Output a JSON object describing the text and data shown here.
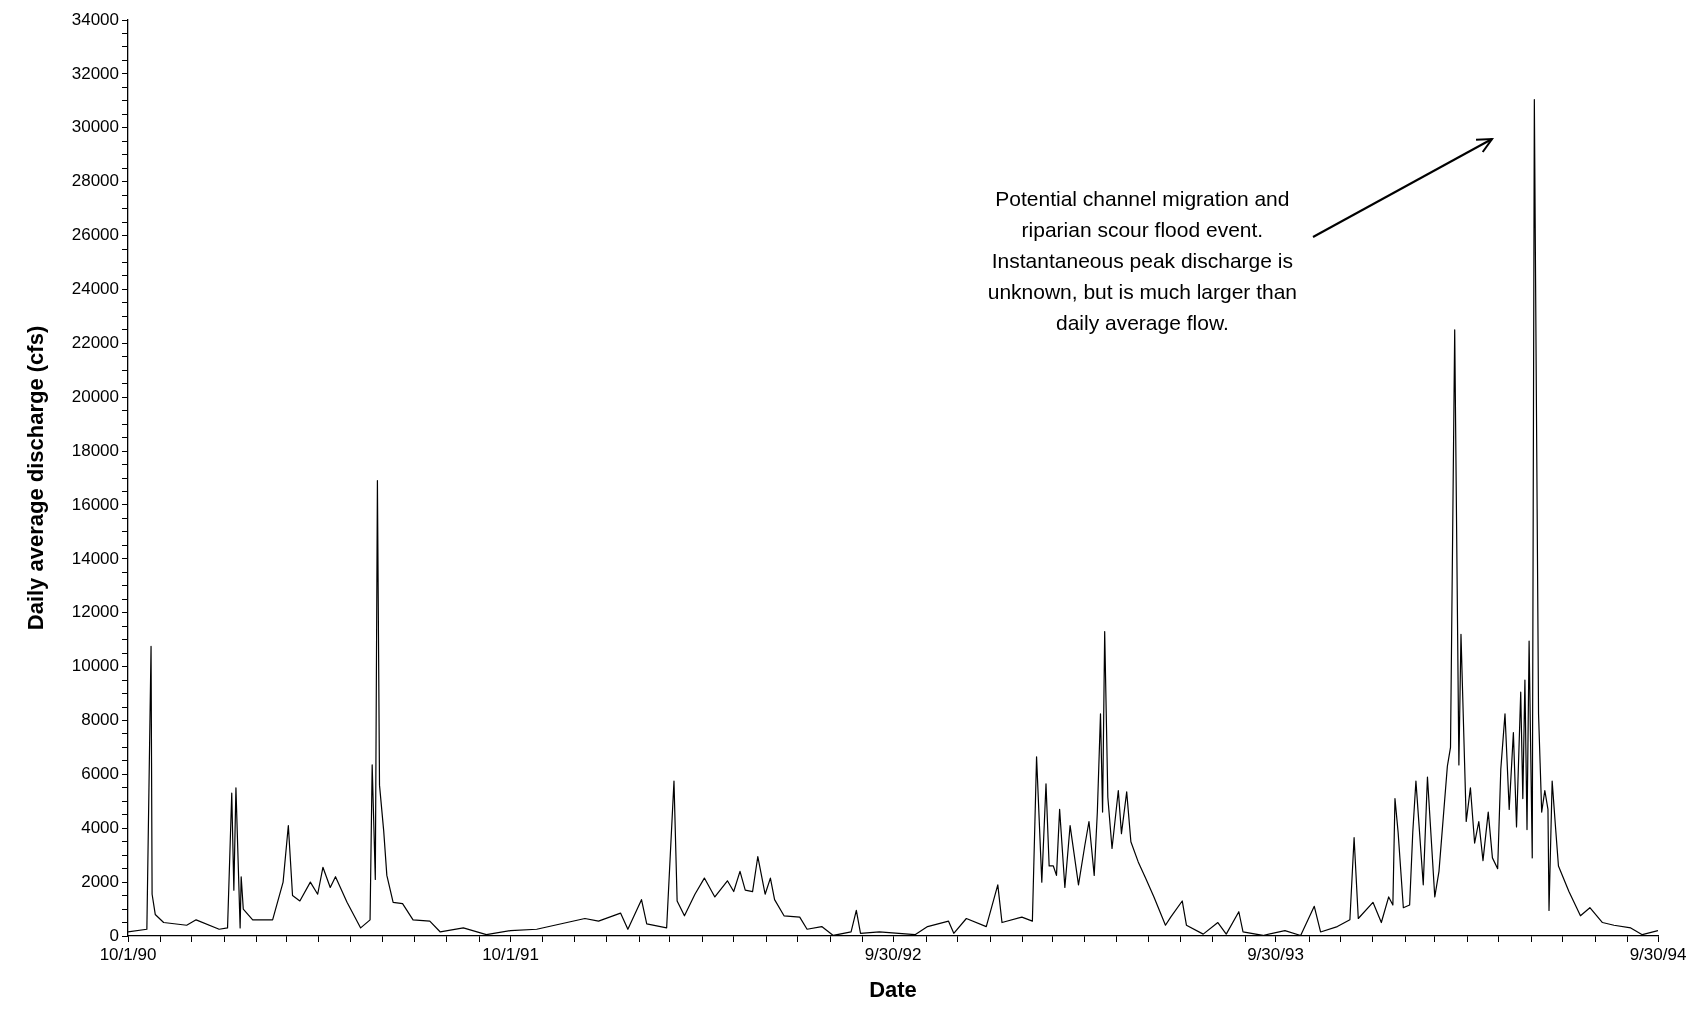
{
  "chart_data": {
    "type": "line",
    "xlabel": "Date",
    "ylabel": "Daily average discharge (cfs)",
    "xlim": [
      "1990-10-01",
      "1994-09-30"
    ],
    "xticks": [
      {
        "value": "1990-10-01",
        "label": "10/1/90"
      },
      {
        "value": "1990-11-01",
        "label": null
      },
      {
        "value": "1990-12-01",
        "label": null
      },
      {
        "value": "1991-01-01",
        "label": null
      },
      {
        "value": "1991-02-01",
        "label": null
      },
      {
        "value": "1991-03-01",
        "label": null
      },
      {
        "value": "1991-04-01",
        "label": null
      },
      {
        "value": "1991-05-01",
        "label": null
      },
      {
        "value": "1991-06-01",
        "label": null
      },
      {
        "value": "1991-07-01",
        "label": null
      },
      {
        "value": "1991-08-01",
        "label": null
      },
      {
        "value": "1991-09-01",
        "label": null
      },
      {
        "value": "1991-10-01",
        "label": "10/1/91"
      },
      {
        "value": "1991-11-01",
        "label": null
      },
      {
        "value": "1991-12-01",
        "label": null
      },
      {
        "value": "1992-01-01",
        "label": null
      },
      {
        "value": "1992-02-01",
        "label": null
      },
      {
        "value": "1992-03-01",
        "label": null
      },
      {
        "value": "1992-04-01",
        "label": null
      },
      {
        "value": "1992-05-01",
        "label": null
      },
      {
        "value": "1992-06-01",
        "label": null
      },
      {
        "value": "1992-07-01",
        "label": null
      },
      {
        "value": "1992-08-01",
        "label": null
      },
      {
        "value": "1992-09-01",
        "label": null
      },
      {
        "value": "1992-09-30",
        "label": "9/30/92"
      },
      {
        "value": "1992-11-01",
        "label": null
      },
      {
        "value": "1992-12-01",
        "label": null
      },
      {
        "value": "1993-01-01",
        "label": null
      },
      {
        "value": "1993-02-01",
        "label": null
      },
      {
        "value": "1993-03-01",
        "label": null
      },
      {
        "value": "1993-04-01",
        "label": null
      },
      {
        "value": "1993-05-01",
        "label": null
      },
      {
        "value": "1993-06-01",
        "label": null
      },
      {
        "value": "1993-07-01",
        "label": null
      },
      {
        "value": "1993-08-01",
        "label": null
      },
      {
        "value": "1993-09-01",
        "label": null
      },
      {
        "value": "1993-09-30",
        "label": "9/30/93"
      },
      {
        "value": "1993-11-01",
        "label": null
      },
      {
        "value": "1993-12-01",
        "label": null
      },
      {
        "value": "1994-01-01",
        "label": null
      },
      {
        "value": "1994-02-01",
        "label": null
      },
      {
        "value": "1994-03-01",
        "label": null
      },
      {
        "value": "1994-04-01",
        "label": null
      },
      {
        "value": "1994-05-01",
        "label": null
      },
      {
        "value": "1994-06-01",
        "label": null
      },
      {
        "value": "1994-07-01",
        "label": null
      },
      {
        "value": "1994-08-01",
        "label": null
      },
      {
        "value": "1994-09-01",
        "label": null
      },
      {
        "value": "1994-09-30",
        "label": "9/30/94"
      }
    ],
    "ylim": [
      0,
      34000
    ],
    "yticks": [
      0,
      {
        "value": 500,
        "label": null
      },
      {
        "value": 1000,
        "label": null
      },
      {
        "value": 1500,
        "label": null
      },
      2000,
      {
        "value": 2500,
        "label": null
      },
      {
        "value": 3000,
        "label": null
      },
      {
        "value": 3500,
        "label": null
      },
      4000,
      {
        "value": 4500,
        "label": null
      },
      {
        "value": 5000,
        "label": null
      },
      {
        "value": 5500,
        "label": null
      },
      6000,
      {
        "value": 6500,
        "label": null
      },
      {
        "value": 7000,
        "label": null
      },
      {
        "value": 7500,
        "label": null
      },
      8000,
      {
        "value": 8500,
        "label": null
      },
      {
        "value": 9000,
        "label": null
      },
      {
        "value": 9500,
        "label": null
      },
      10000,
      {
        "value": 10500,
        "label": null
      },
      {
        "value": 11000,
        "label": null
      },
      {
        "value": 11500,
        "label": null
      },
      12000,
      {
        "value": 12500,
        "label": null
      },
      {
        "value": 13000,
        "label": null
      },
      {
        "value": 13500,
        "label": null
      },
      14000,
      {
        "value": 14500,
        "label": null
      },
      {
        "value": 15000,
        "label": null
      },
      {
        "value": 15500,
        "label": null
      },
      16000,
      {
        "value": 16500,
        "label": null
      },
      {
        "value": 17000,
        "label": null
      },
      {
        "value": 17500,
        "label": null
      },
      18000,
      {
        "value": 18500,
        "label": null
      },
      {
        "value": 19000,
        "label": null
      },
      {
        "value": 19500,
        "label": null
      },
      20000,
      {
        "value": 20500,
        "label": null
      },
      {
        "value": 21000,
        "label": null
      },
      {
        "value": 21500,
        "label": null
      },
      22000,
      {
        "value": 22500,
        "label": null
      },
      {
        "value": 23000,
        "label": null
      },
      {
        "value": 23500,
        "label": null
      },
      24000,
      {
        "value": 24500,
        "label": null
      },
      {
        "value": 25000,
        "label": null
      },
      {
        "value": 25500,
        "label": null
      },
      26000,
      {
        "value": 26500,
        "label": null
      },
      {
        "value": 27000,
        "label": null
      },
      {
        "value": 27500,
        "label": null
      },
      28000,
      {
        "value": 28500,
        "label": null
      },
      {
        "value": 29000,
        "label": null
      },
      {
        "value": 29500,
        "label": null
      },
      30000,
      {
        "value": 30500,
        "label": null
      },
      {
        "value": 31000,
        "label": null
      },
      {
        "value": 31500,
        "label": null
      },
      32000,
      {
        "value": 32500,
        "label": null
      },
      {
        "value": 33000,
        "label": null
      },
      {
        "value": 33500,
        "label": null
      },
      34000
    ],
    "grid": false,
    "legend": false,
    "marker": "none",
    "line_style": "solid",
    "annotations": [
      "Potential channel migration and riparian scour flood event. Instantaneous peak discharge is unknown, but is much larger than daily average flow."
    ],
    "series": [
      {
        "color": "#000000",
        "x": [
          "1990-10-01",
          "1990-10-19",
          "1990-10-23",
          "1990-10-24",
          "1990-10-27",
          "1990-11-04",
          "1990-11-26",
          "1990-12-05",
          "1990-12-27",
          "1991-01-04",
          "1991-01-08",
          "1991-01-10",
          "1991-01-12",
          "1991-01-16",
          "1991-01-17",
          "1991-01-19",
          "1991-01-28",
          "1991-02-16",
          "1991-02-26",
          "1991-03-03",
          "1991-03-07",
          "1991-03-14",
          "1991-03-24",
          "1991-03-31",
          "1991-04-05",
          "1991-04-12",
          "1991-04-17",
          "1991-04-28",
          "1991-05-11",
          "1991-05-20",
          "1991-05-22",
          "1991-05-25",
          "1991-05-27",
          "1991-05-29",
          "1991-06-02",
          "1991-06-05",
          "1991-06-11",
          "1991-06-20",
          "1991-06-30",
          "1991-07-16",
          "1991-07-26",
          "1991-08-17",
          "1991-09-08",
          "1991-10-01",
          "1991-10-26",
          "1991-12-11",
          "1991-12-24",
          "1992-01-14",
          "1992-01-21",
          "1992-02-03",
          "1992-02-08",
          "1992-02-27",
          "1992-03-05",
          "1992-03-08",
          "1992-03-15",
          "1992-03-25",
          "1992-04-03",
          "1992-04-13",
          "1992-04-25",
          "1992-05-01",
          "1992-05-07",
          "1992-05-12",
          "1992-05-19",
          "1992-05-24",
          "1992-05-31",
          "1992-06-05",
          "1992-06-09",
          "1992-06-18",
          "1992-07-03",
          "1992-07-10",
          "1992-07-24",
          "1992-08-04",
          "1992-08-21",
          "1992-08-26",
          "1992-08-30",
          "1992-09-17",
          "1992-10-21",
          "1992-11-02",
          "1992-11-22",
          "1992-11-27",
          "1992-12-09",
          "1992-12-28",
          "1993-01-08",
          "1993-01-12",
          "1993-01-31",
          "1993-02-10",
          "1993-02-14",
          "1993-02-19",
          "1993-02-23",
          "1993-02-26",
          "1993-03-02",
          "1993-03-05",
          "1993-03-08",
          "1993-03-13",
          "1993-03-18",
          "1993-03-26",
          "1993-04-01",
          "1993-04-05",
          "1993-04-10",
          "1993-04-13",
          "1993-04-16",
          "1993-04-18",
          "1993-04-20",
          "1993-04-23",
          "1993-04-27",
          "1993-05-03",
          "1993-05-06",
          "1993-05-11",
          "1993-05-15",
          "1993-05-22",
          "1993-05-29",
          "1993-06-06",
          "1993-06-17",
          "1993-06-22",
          "1993-07-03",
          "1993-07-07",
          "1993-07-23",
          "1993-08-06",
          "1993-08-14",
          "1993-08-26",
          "1993-08-30",
          "1993-09-18",
          "1993-10-09",
          "1993-10-24",
          "1993-11-06",
          "1993-11-12",
          "1993-11-28",
          "1993-12-10",
          "1993-12-14",
          "1993-12-18",
          "1994-01-01",
          "1994-01-09",
          "1994-01-16",
          "1994-01-20",
          "1994-01-22",
          "1994-01-25",
          "1994-01-30",
          "1994-02-05",
          "1994-02-08",
          "1994-02-11",
          "1994-02-18",
          "1994-02-22",
          "1994-03-01",
          "1994-03-05",
          "1994-03-13",
          "1994-03-16",
          "1994-03-20",
          "1994-03-24",
          "1994-03-26",
          "1994-03-31",
          "1994-04-04",
          "1994-04-08",
          "1994-04-12",
          "1994-04-16",
          "1994-04-21",
          "1994-04-25",
          "1994-04-30",
          "1994-05-03",
          "1994-05-07",
          "1994-05-11",
          "1994-05-15",
          "1994-05-18",
          "1994-05-22",
          "1994-05-24",
          "1994-05-26",
          "1994-05-28",
          "1994-05-30",
          "1994-06-02",
          "1994-06-04",
          "1994-06-08",
          "1994-06-11",
          "1994-06-14",
          "1994-06-17",
          "1994-06-18",
          "1994-06-21",
          "1994-06-24",
          "1994-06-27",
          "1994-07-07",
          "1994-07-18",
          "1994-07-27",
          "1994-08-08",
          "1994-08-19",
          "1994-09-04",
          "1994-09-15",
          "1994-09-30"
        ],
        "values": [
          150,
          250,
          10750,
          1550,
          800,
          500,
          400,
          600,
          250,
          300,
          5300,
          1700,
          5500,
          300,
          2200,
          1000,
          600,
          600,
          2000,
          4100,
          1500,
          1300,
          2000,
          1550,
          2550,
          1800,
          2200,
          1250,
          300,
          600,
          6350,
          2100,
          16900,
          5600,
          3900,
          2250,
          1250,
          1200,
          600,
          550,
          150,
          300,
          50,
          200,
          250,
          650,
          550,
          850,
          250,
          1350,
          450,
          300,
          5750,
          1300,
          750,
          1550,
          2150,
          1450,
          2050,
          1650,
          2400,
          1700,
          1650,
          2950,
          1550,
          2150,
          1350,
          750,
          700,
          250,
          350,
          20,
          150,
          950,
          100,
          150,
          50,
          350,
          550,
          100,
          650,
          350,
          1900,
          500,
          700,
          550,
          6650,
          2000,
          5650,
          2600,
          2600,
          2250,
          4700,
          1800,
          4100,
          1900,
          3350,
          4250,
          2250,
          4600,
          8250,
          4600,
          11300,
          5150,
          3250,
          5400,
          3800,
          5350,
          3500,
          2750,
          2150,
          1450,
          400,
          700,
          1300,
          400,
          70,
          500,
          70,
          900,
          150,
          20,
          200,
          20,
          1100,
          150,
          350,
          600,
          3650,
          650,
          1250,
          500,
          1450,
          1150,
          5100,
          3850,
          1050,
          1150,
          3850,
          5750,
          1900,
          5900,
          1450,
          2400,
          6300,
          7000,
          22500,
          6350,
          11200,
          4250,
          5500,
          3450,
          4250,
          2800,
          4600,
          2900,
          2500,
          6200,
          8250,
          4700,
          7550,
          4050,
          9050,
          5100,
          9500,
          3950,
          10950,
          2900,
          31050,
          8250,
          4600,
          5400,
          4700,
          950,
          5750,
          4150,
          2600,
          1650,
          750,
          1050,
          500,
          400,
          300,
          50,
          200
        ]
      }
    ]
  }
}
